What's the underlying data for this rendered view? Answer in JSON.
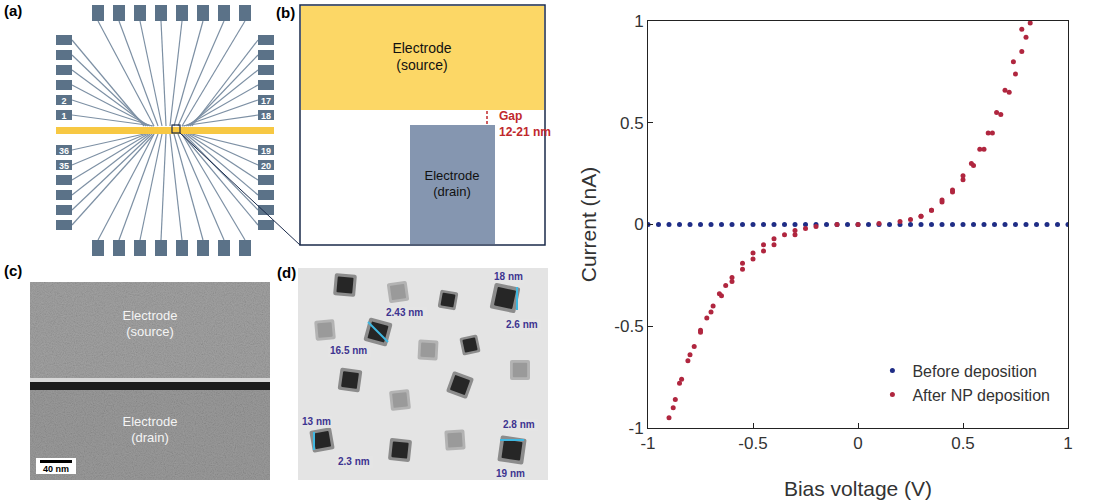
{
  "panels": [
    {
      "letter": "(a)",
      "pad_labels": {
        "left": [
          "2",
          "1",
          "36",
          "35"
        ],
        "right": [
          "17",
          "18",
          "19",
          "20"
        ]
      }
    },
    {
      "letter": "(b)",
      "source": "Electrode (source)",
      "drain": "Electrode (drain)",
      "gap_label": "Gap",
      "gap_size": "12-21 nm"
    },
    {
      "letter": "(c)",
      "source": "Electrode (source)",
      "drain": "Electrode (drain)",
      "scale_bar": "40 nm"
    },
    {
      "letter": "(d)",
      "labels": [
        "18 nm",
        "2.6 nm",
        "2.43 nm",
        "16.5 nm",
        "13 nm",
        "2.3 nm",
        "2.8 nm",
        "19 nm"
      ]
    }
  ],
  "chart_data": {
    "type": "scatter",
    "x_label": "Bias voltage (V)",
    "y_label": "Current (nA)",
    "xlim": [
      -1,
      1
    ],
    "ylim": [
      -1,
      1
    ],
    "xticks": [
      -1,
      -0.5,
      0,
      0.5,
      1
    ],
    "yticks": [
      -1,
      -0.5,
      0,
      0.5,
      1
    ],
    "grid": false,
    "legend": "lower right",
    "series": [
      {
        "name": "Before deposition",
        "color": "#1f2d86",
        "marker": "circle",
        "x": [
          -1,
          -0.95,
          -0.9,
          -0.85,
          -0.8,
          -0.75,
          -0.7,
          -0.65,
          -0.6,
          -0.55,
          -0.5,
          -0.45,
          -0.4,
          -0.35,
          -0.3,
          -0.25,
          -0.2,
          -0.15,
          -0.1,
          -0.05,
          0,
          0.05,
          0.1,
          0.15,
          0.2,
          0.25,
          0.3,
          0.35,
          0.4,
          0.45,
          0.5,
          0.55,
          0.6,
          0.65,
          0.7,
          0.75,
          0.8,
          0.85,
          0.9,
          0.95,
          1
        ],
        "values": [
          0,
          0,
          0,
          0,
          0,
          0,
          0,
          0,
          0,
          0,
          0,
          0,
          0,
          0,
          0,
          0,
          0,
          0,
          0,
          0,
          0,
          0,
          0,
          0,
          0,
          0,
          0,
          0,
          0,
          0,
          0,
          0,
          0,
          0,
          0,
          0,
          0,
          0,
          0,
          0,
          0
        ]
      },
      {
        "name": "After NP deposition",
        "color": "#b0263f",
        "marker": "circle",
        "x": [
          -0.9,
          -0.87,
          -0.84,
          -0.81,
          -0.78,
          -0.75,
          -0.72,
          -0.69,
          -0.66,
          -0.63,
          -0.6,
          -0.55,
          -0.5,
          -0.45,
          -0.4,
          -0.35,
          -0.3,
          -0.25,
          -0.2,
          -0.1,
          0,
          0.1,
          0.2,
          0.25,
          0.3,
          0.35,
          0.4,
          0.45,
          0.5,
          0.55,
          0.6,
          0.64,
          0.68,
          0.72,
          0.75,
          0.78,
          0.8,
          0.82,
          0.78,
          0.74,
          0.7,
          0.66,
          0.62,
          0.58,
          0.54,
          0.5,
          0.45,
          0.4,
          0.35,
          0.3,
          -0.3,
          -0.4,
          -0.45,
          -0.5,
          -0.55,
          -0.6,
          -0.65,
          -0.7,
          -0.75,
          -0.8,
          -0.85,
          -0.88
        ],
        "values": [
          -0.95,
          -0.86,
          -0.76,
          -0.67,
          -0.6,
          -0.52,
          -0.46,
          -0.4,
          -0.34,
          -0.3,
          -0.26,
          -0.19,
          -0.14,
          -0.1,
          -0.07,
          -0.05,
          -0.03,
          -0.02,
          -0.01,
          0,
          0,
          0.005,
          0.015,
          0.025,
          0.04,
          0.07,
          0.11,
          0.16,
          0.22,
          0.29,
          0.37,
          0.45,
          0.54,
          0.65,
          0.74,
          0.85,
          0.92,
          0.99,
          0.96,
          0.8,
          0.66,
          0.55,
          0.45,
          0.37,
          0.3,
          0.24,
          0.17,
          0.12,
          0.07,
          0.04,
          -0.05,
          -0.1,
          -0.13,
          -0.17,
          -0.22,
          -0.28,
          -0.35,
          -0.43,
          -0.53,
          -0.64,
          -0.78,
          -0.9
        ]
      }
    ]
  }
}
